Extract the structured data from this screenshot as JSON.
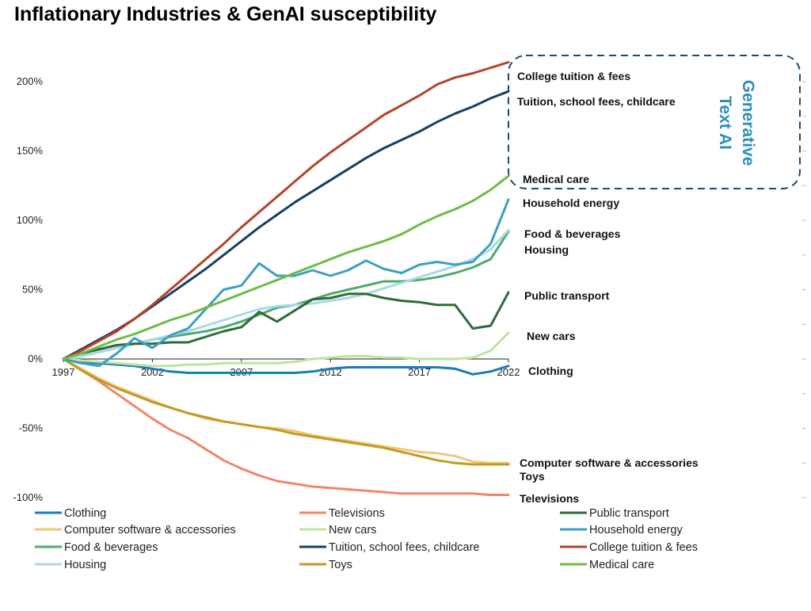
{
  "chart_data": {
    "type": "line",
    "title": "Inflationary Industries & GenAI susceptibility",
    "xlabel": "",
    "ylabel": "",
    "xlim": [
      1997,
      2022
    ],
    "ylim": [
      -100,
      200
    ],
    "x_ticks": [
      "1997",
      "2002",
      "2007",
      "2012",
      "2017",
      "2022"
    ],
    "y_ticks": [
      "200%",
      "150%",
      "100%",
      "50%",
      "0%",
      "-50%",
      "-100%"
    ],
    "x": [
      1997,
      1998,
      1999,
      2000,
      2001,
      2002,
      2003,
      2004,
      2005,
      2006,
      2007,
      2008,
      2009,
      2010,
      2011,
      2012,
      2013,
      2014,
      2015,
      2016,
      2017,
      2018,
      2019,
      2020,
      2021,
      2022
    ],
    "annotation": {
      "text_line1": "Generative",
      "text_line2": "Text AI"
    },
    "series": [
      {
        "name": "Clothing",
        "end_label": "Clothing",
        "color": "#1a7db5",
        "values": [
          0,
          -2,
          -3,
          -4,
          -5,
          -7,
          -9,
          -10,
          -10,
          -10,
          -10,
          -10,
          -10,
          -10,
          -9,
          -7,
          -6,
          -6,
          -6,
          -6,
          -6,
          -6,
          -7,
          -11,
          -9,
          -5
        ]
      },
      {
        "name": "Computer software & accessories",
        "end_label": "Computer software & accessories",
        "color": "#f0c77a",
        "values": [
          0,
          -7,
          -14,
          -20,
          -25,
          -30,
          -35,
          -39,
          -43,
          -45,
          -47,
          -49,
          -50,
          -52,
          -55,
          -57,
          -59,
          -61,
          -63,
          -65,
          -67,
          -68,
          -70,
          -74,
          -75,
          -75
        ]
      },
      {
        "name": "Food & beverages",
        "end_label": "Food & beverages",
        "color": "#4caa6e",
        "values": [
          0,
          2,
          5,
          8,
          11,
          14,
          16,
          18,
          20,
          23,
          27,
          32,
          37,
          39,
          43,
          47,
          50,
          53,
          56,
          56,
          57,
          59,
          62,
          66,
          72,
          92
        ]
      },
      {
        "name": "Housing",
        "end_label": "Housing",
        "color": "#a9d9e6",
        "values": [
          0,
          2,
          5,
          8,
          11,
          14,
          17,
          20,
          24,
          28,
          32,
          36,
          38,
          39,
          40,
          42,
          44,
          47,
          51,
          55,
          59,
          63,
          67,
          72,
          79,
          93
        ]
      },
      {
        "name": "Televisions",
        "end_label": "Televisions",
        "color": "#f0876a",
        "values": [
          0,
          -8,
          -16,
          -25,
          -34,
          -43,
          -51,
          -57,
          -65,
          -73,
          -79,
          -84,
          -88,
          -90,
          -92,
          -93,
          -94,
          -95,
          -96,
          -97,
          -97,
          -97,
          -97,
          -97,
          -98,
          -98
        ]
      },
      {
        "name": "New cars",
        "end_label": "New cars",
        "color": "#bfe3a3",
        "values": [
          0,
          -1,
          -2,
          -3,
          -4,
          -5,
          -5,
          -4,
          -4,
          -3,
          -3,
          -3,
          -3,
          -2,
          0,
          1,
          2,
          2,
          1,
          1,
          0,
          0,
          0,
          1,
          6,
          19
        ]
      },
      {
        "name": "Tuition, school fees, childcare",
        "end_label": "Tuition, school fees, childcare",
        "color": "#17405f",
        "values": [
          0,
          7,
          14,
          21,
          29,
          38,
          47,
          56,
          65,
          75,
          85,
          95,
          104,
          113,
          121,
          129,
          137,
          145,
          152,
          158,
          164,
          171,
          177,
          182,
          188,
          193
        ]
      },
      {
        "name": "Toys",
        "end_label": "Toys",
        "color": "#c39a22",
        "values": [
          0,
          -8,
          -15,
          -21,
          -26,
          -31,
          -35,
          -39,
          -42,
          -45,
          -47,
          -49,
          -51,
          -54,
          -56,
          -58,
          -60,
          -62,
          -64,
          -67,
          -70,
          -73,
          -75,
          -76,
          -76,
          -76
        ]
      },
      {
        "name": "Public transport",
        "end_label": "Public transport",
        "color": "#2e6b3a",
        "values": [
          0,
          4,
          7,
          10,
          11,
          11,
          12,
          12,
          16,
          20,
          23,
          34,
          27,
          35,
          43,
          44,
          47,
          47,
          44,
          42,
          41,
          39,
          39,
          22,
          24,
          48
        ]
      },
      {
        "name": "Household energy",
        "end_label": "Household energy",
        "color": "#3d9fbf",
        "values": [
          0,
          -3,
          -5,
          4,
          15,
          8,
          17,
          22,
          36,
          50,
          53,
          69,
          60,
          60,
          64,
          60,
          64,
          71,
          65,
          62,
          68,
          70,
          68,
          70,
          83,
          115
        ]
      },
      {
        "name": "College tuition & fees",
        "end_label": "College tuition & fees",
        "color": "#b5432a",
        "values": [
          0,
          6,
          13,
          20,
          29,
          39,
          50,
          61,
          72,
          83,
          95,
          106,
          117,
          128,
          139,
          149,
          158,
          167,
          176,
          183,
          190,
          198,
          203,
          206,
          210,
          214
        ]
      },
      {
        "name": "Medical care",
        "end_label": "Medical care",
        "color": "#6cbd45",
        "values": [
          0,
          4,
          9,
          14,
          18,
          23,
          28,
          32,
          37,
          42,
          47,
          52,
          57,
          62,
          67,
          72,
          77,
          81,
          85,
          90,
          97,
          103,
          108,
          114,
          122,
          132
        ]
      }
    ]
  }
}
